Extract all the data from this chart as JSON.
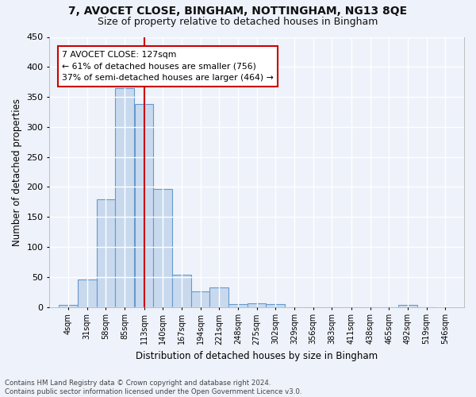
{
  "title1": "7, AVOCET CLOSE, BINGHAM, NOTTINGHAM, NG13 8QE",
  "title2": "Size of property relative to detached houses in Bingham",
  "xlabel": "Distribution of detached houses by size in Bingham",
  "ylabel": "Number of detached properties",
  "bin_edges": [
    4,
    31,
    58,
    85,
    113,
    140,
    167,
    194,
    221,
    248,
    275,
    302,
    329,
    356,
    383,
    411,
    438,
    465,
    492,
    519,
    546
  ],
  "bar_heights": [
    4,
    46,
    180,
    365,
    338,
    196,
    53,
    26,
    33,
    5,
    6,
    5,
    0,
    0,
    0,
    0,
    0,
    0,
    4,
    0
  ],
  "bar_color": "#c8d9ee",
  "bar_edge_color": "#6699cc",
  "vline_x": 127,
  "vline_color": "#cc0000",
  "annotation_line1": "7 AVOCET CLOSE: 127sqm",
  "annotation_line2": "← 61% of detached houses are smaller (756)",
  "annotation_line3": "37% of semi-detached houses are larger (464) →",
  "ylim": [
    0,
    450
  ],
  "yticks": [
    0,
    50,
    100,
    150,
    200,
    250,
    300,
    350,
    400,
    450
  ],
  "background_color": "#eef2fa",
  "grid_color": "#ffffff",
  "title1_fontsize": 10,
  "title2_fontsize": 9,
  "footnote": "Contains HM Land Registry data © Crown copyright and database right 2024.\nContains public sector information licensed under the Open Government Licence v3.0."
}
